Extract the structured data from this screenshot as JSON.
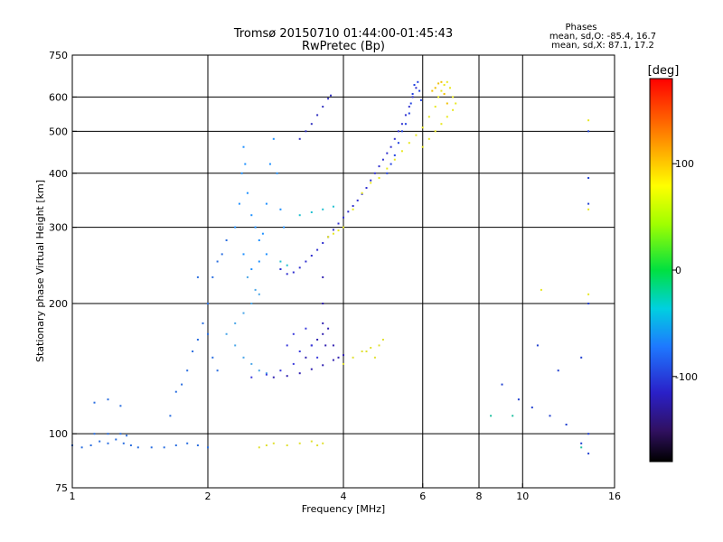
{
  "header": {
    "title_line1": "Tromsø 20150710 01:44:00-01:45:43",
    "title_line2": "RwPretec (Bp)",
    "phases_title": "Phases",
    "phases_o": "mean, sd,O: -85.4, 16.7",
    "phases_x": "mean, sd,X:  87.1, 17.2"
  },
  "colorbar": {
    "unit": "[deg]",
    "ticks": [
      {
        "value": 100,
        "label": "100"
      },
      {
        "value": 0,
        "label": "0"
      },
      {
        "value": -100,
        "label": "-100"
      }
    ],
    "range": [
      -180,
      180
    ]
  },
  "chart_data": {
    "type": "scatter",
    "xlabel": "Frequency [MHz]",
    "ylabel": "Stationary phase Virtual Height [km]",
    "x_scale": "log",
    "y_scale": "log",
    "xlim": [
      1,
      16
    ],
    "ylim": [
      75,
      750
    ],
    "x_ticks": [
      {
        "value": 1,
        "label": "1"
      },
      {
        "value": 2,
        "label": "2"
      },
      {
        "value": 4,
        "label": "4"
      },
      {
        "value": 6,
        "label": "6"
      },
      {
        "value": 8,
        "label": "8"
      },
      {
        "value": 10,
        "label": "10"
      },
      {
        "value": 16,
        "label": "16"
      }
    ],
    "y_ticks": [
      {
        "value": 75,
        "label": "75"
      },
      {
        "value": 100,
        "label": "100"
      },
      {
        "value": 200,
        "label": "200"
      },
      {
        "value": 300,
        "label": "300"
      },
      {
        "value": 400,
        "label": "400"
      },
      {
        "value": 500,
        "label": "500"
      },
      {
        "value": 600,
        "label": "600"
      },
      {
        "value": 750,
        "label": "750"
      }
    ],
    "grid_x": [
      2,
      4,
      6,
      8,
      10
    ],
    "grid_y": [
      100,
      200,
      300,
      400,
      500,
      600
    ],
    "series": [
      {
        "color": "#2a6ee0",
        "points": [
          [
            1.0,
            94
          ],
          [
            1.05,
            93
          ],
          [
            1.1,
            94
          ],
          [
            1.15,
            96
          ],
          [
            1.2,
            95
          ],
          [
            1.25,
            97
          ],
          [
            1.3,
            95
          ],
          [
            1.35,
            94
          ],
          [
            1.4,
            93
          ],
          [
            1.5,
            93
          ],
          [
            1.6,
            93
          ],
          [
            1.7,
            94
          ],
          [
            1.8,
            95
          ],
          [
            1.9,
            94
          ],
          [
            2.0,
            93
          ],
          [
            1.12,
            100
          ],
          [
            1.2,
            100
          ],
          [
            1.28,
            100
          ],
          [
            1.32,
            99
          ],
          [
            1.12,
            118
          ],
          [
            1.2,
            120
          ],
          [
            1.28,
            116
          ]
        ]
      },
      {
        "color": "#2a6ee0",
        "points": [
          [
            1.65,
            110
          ],
          [
            1.7,
            125
          ],
          [
            1.75,
            130
          ],
          [
            1.8,
            140
          ],
          [
            1.85,
            155
          ],
          [
            1.9,
            165
          ],
          [
            1.95,
            180
          ],
          [
            2.0,
            200
          ],
          [
            2.05,
            230
          ],
          [
            2.1,
            250
          ],
          [
            2.0,
            170
          ],
          [
            2.05,
            150
          ],
          [
            2.1,
            140
          ],
          [
            1.9,
            230
          ],
          [
            2.15,
            260
          ],
          [
            2.2,
            280
          ]
        ]
      },
      {
        "color": "#1e90ff",
        "points": [
          [
            2.3,
            300
          ],
          [
            2.35,
            340
          ],
          [
            2.38,
            400
          ],
          [
            2.4,
            460
          ],
          [
            2.42,
            420
          ],
          [
            2.45,
            360
          ],
          [
            2.5,
            320
          ],
          [
            2.55,
            300
          ],
          [
            2.6,
            280
          ],
          [
            2.65,
            290
          ],
          [
            2.7,
            340
          ],
          [
            2.75,
            420
          ],
          [
            2.8,
            480
          ],
          [
            2.85,
            400
          ],
          [
            2.9,
            330
          ],
          [
            2.95,
            300
          ],
          [
            2.4,
            260
          ],
          [
            2.5,
            240
          ],
          [
            2.6,
            250
          ],
          [
            2.7,
            260
          ],
          [
            2.9,
            240
          ]
        ]
      },
      {
        "color": "#4aa6e8",
        "points": [
          [
            2.2,
            170
          ],
          [
            2.3,
            160
          ],
          [
            2.4,
            150
          ],
          [
            2.5,
            145
          ],
          [
            2.6,
            140
          ],
          [
            2.7,
            138
          ],
          [
            2.3,
            180
          ],
          [
            2.4,
            190
          ],
          [
            2.5,
            200
          ],
          [
            2.6,
            210
          ],
          [
            2.45,
            230
          ],
          [
            2.55,
            215
          ]
        ]
      },
      {
        "color": "#3030d0",
        "points": [
          [
            2.9,
            240
          ],
          [
            3.0,
            234
          ],
          [
            3.1,
            236
          ],
          [
            3.2,
            242
          ],
          [
            3.3,
            250
          ],
          [
            3.4,
            258
          ],
          [
            3.5,
            266
          ],
          [
            3.6,
            276
          ],
          [
            3.7,
            285
          ],
          [
            3.8,
            296
          ],
          [
            3.9,
            306
          ],
          [
            4.0,
            316
          ],
          [
            4.1,
            326
          ],
          [
            4.2,
            336
          ],
          [
            4.3,
            346
          ],
          [
            4.4,
            358
          ],
          [
            4.5,
            370
          ],
          [
            4.6,
            385
          ],
          [
            4.7,
            400
          ],
          [
            4.8,
            415
          ],
          [
            4.9,
            430
          ],
          [
            5.0,
            445
          ],
          [
            5.1,
            460
          ],
          [
            5.2,
            480
          ],
          [
            5.3,
            500
          ],
          [
            5.4,
            520
          ],
          [
            5.5,
            545
          ],
          [
            5.6,
            570
          ],
          [
            5.7,
            600
          ],
          [
            5.8,
            630
          ]
        ]
      },
      {
        "color": "#2040e0",
        "points": [
          [
            5.0,
            400
          ],
          [
            5.1,
            420
          ],
          [
            5.2,
            440
          ],
          [
            5.3,
            470
          ],
          [
            5.4,
            500
          ],
          [
            5.5,
            520
          ],
          [
            5.6,
            550
          ],
          [
            5.65,
            580
          ],
          [
            5.7,
            610
          ],
          [
            5.75,
            640
          ],
          [
            5.85,
            650
          ],
          [
            5.9,
            620
          ],
          [
            5.95,
            590
          ]
        ]
      },
      {
        "color": "#3030c0",
        "points": [
          [
            3.2,
            480
          ],
          [
            3.3,
            500
          ],
          [
            3.4,
            520
          ],
          [
            3.5,
            545
          ],
          [
            3.6,
            570
          ],
          [
            3.7,
            595
          ],
          [
            3.75,
            605
          ]
        ]
      },
      {
        "color": "#3020b0",
        "points": [
          [
            2.8,
            135
          ],
          [
            3.0,
            136
          ],
          [
            3.2,
            138
          ],
          [
            3.4,
            141
          ],
          [
            3.6,
            144
          ],
          [
            3.8,
            148
          ],
          [
            4.0,
            152
          ],
          [
            3.3,
            150
          ],
          [
            3.4,
            160
          ],
          [
            3.5,
            165
          ],
          [
            3.6,
            170
          ],
          [
            3.7,
            175
          ],
          [
            3.8,
            160
          ],
          [
            3.9,
            150
          ],
          [
            3.6,
            230
          ],
          [
            3.6,
            200
          ],
          [
            3.6,
            180
          ],
          [
            3.65,
            160
          ]
        ]
      },
      {
        "color": "#3a3adc",
        "points": [
          [
            2.5,
            135
          ],
          [
            2.7,
            137
          ],
          [
            2.9,
            140
          ],
          [
            3.1,
            145
          ],
          [
            3.0,
            160
          ],
          [
            3.2,
            155
          ],
          [
            3.4,
            160
          ],
          [
            3.5,
            150
          ],
          [
            3.1,
            170
          ],
          [
            3.3,
            175
          ]
        ]
      },
      {
        "color": "#e8e820",
        "points": [
          [
            3.7,
            285
          ],
          [
            3.8,
            290
          ],
          [
            3.9,
            295
          ],
          [
            4.0,
            300
          ],
          [
            4.2,
            330
          ],
          [
            4.4,
            360
          ],
          [
            4.6,
            380
          ],
          [
            4.8,
            390
          ],
          [
            5.0,
            410
          ],
          [
            5.2,
            430
          ],
          [
            5.4,
            450
          ],
          [
            5.6,
            470
          ],
          [
            5.8,
            490
          ],
          [
            6.0,
            510
          ],
          [
            6.2,
            540
          ],
          [
            6.4,
            570
          ],
          [
            6.5,
            600
          ],
          [
            6.6,
            620
          ],
          [
            6.7,
            640
          ],
          [
            6.8,
            650
          ],
          [
            6.9,
            630
          ],
          [
            7.0,
            600
          ],
          [
            6.0,
            460
          ],
          [
            6.2,
            480
          ],
          [
            6.4,
            500
          ],
          [
            6.6,
            520
          ],
          [
            6.8,
            540
          ],
          [
            7.0,
            560
          ],
          [
            7.1,
            580
          ]
        ]
      },
      {
        "color": "#f0c000",
        "points": [
          [
            6.3,
            620
          ],
          [
            6.4,
            630
          ],
          [
            6.5,
            645
          ],
          [
            6.6,
            650
          ],
          [
            6.7,
            610
          ],
          [
            6.8,
            580
          ]
        ]
      },
      {
        "color": "#e0e030",
        "points": [
          [
            4.0,
            145
          ],
          [
            4.2,
            150
          ],
          [
            4.4,
            155
          ],
          [
            4.6,
            158
          ],
          [
            4.8,
            160
          ],
          [
            4.9,
            165
          ],
          [
            4.7,
            150
          ],
          [
            4.5,
            155
          ]
        ]
      },
      {
        "color": "#e0e030",
        "points": [
          [
            2.6,
            93
          ],
          [
            2.7,
            94
          ],
          [
            2.8,
            95
          ],
          [
            3.0,
            94
          ],
          [
            3.2,
            95
          ],
          [
            3.4,
            96
          ],
          [
            3.5,
            94
          ],
          [
            3.6,
            95
          ]
        ]
      },
      {
        "color": "#20c0d0",
        "points": [
          [
            3.2,
            320
          ],
          [
            3.4,
            325
          ],
          [
            3.6,
            330
          ],
          [
            3.8,
            335
          ],
          [
            2.9,
            250
          ],
          [
            3.0,
            245
          ]
        ]
      },
      {
        "color": "#2040d0",
        "points": [
          [
            9.8,
            120
          ],
          [
            10.5,
            115
          ],
          [
            11.5,
            110
          ],
          [
            12.5,
            105
          ],
          [
            13.5,
            95
          ],
          [
            14.0,
            90
          ],
          [
            9.0,
            130
          ],
          [
            10.8,
            160
          ],
          [
            12.0,
            140
          ],
          [
            13.5,
            150
          ],
          [
            14.0,
            100
          ],
          [
            14.0,
            200
          ],
          [
            14.0,
            340
          ],
          [
            14.0,
            390
          ],
          [
            14.0,
            500
          ]
        ]
      },
      {
        "color": "#20c0a0",
        "points": [
          [
            8.5,
            110
          ],
          [
            9.5,
            110
          ],
          [
            13.5,
            93
          ]
        ]
      },
      {
        "color": "#e8e820",
        "points": [
          [
            14.0,
            530
          ],
          [
            14.0,
            330
          ],
          [
            14.0,
            210
          ],
          [
            11.0,
            215
          ]
        ]
      }
    ]
  }
}
